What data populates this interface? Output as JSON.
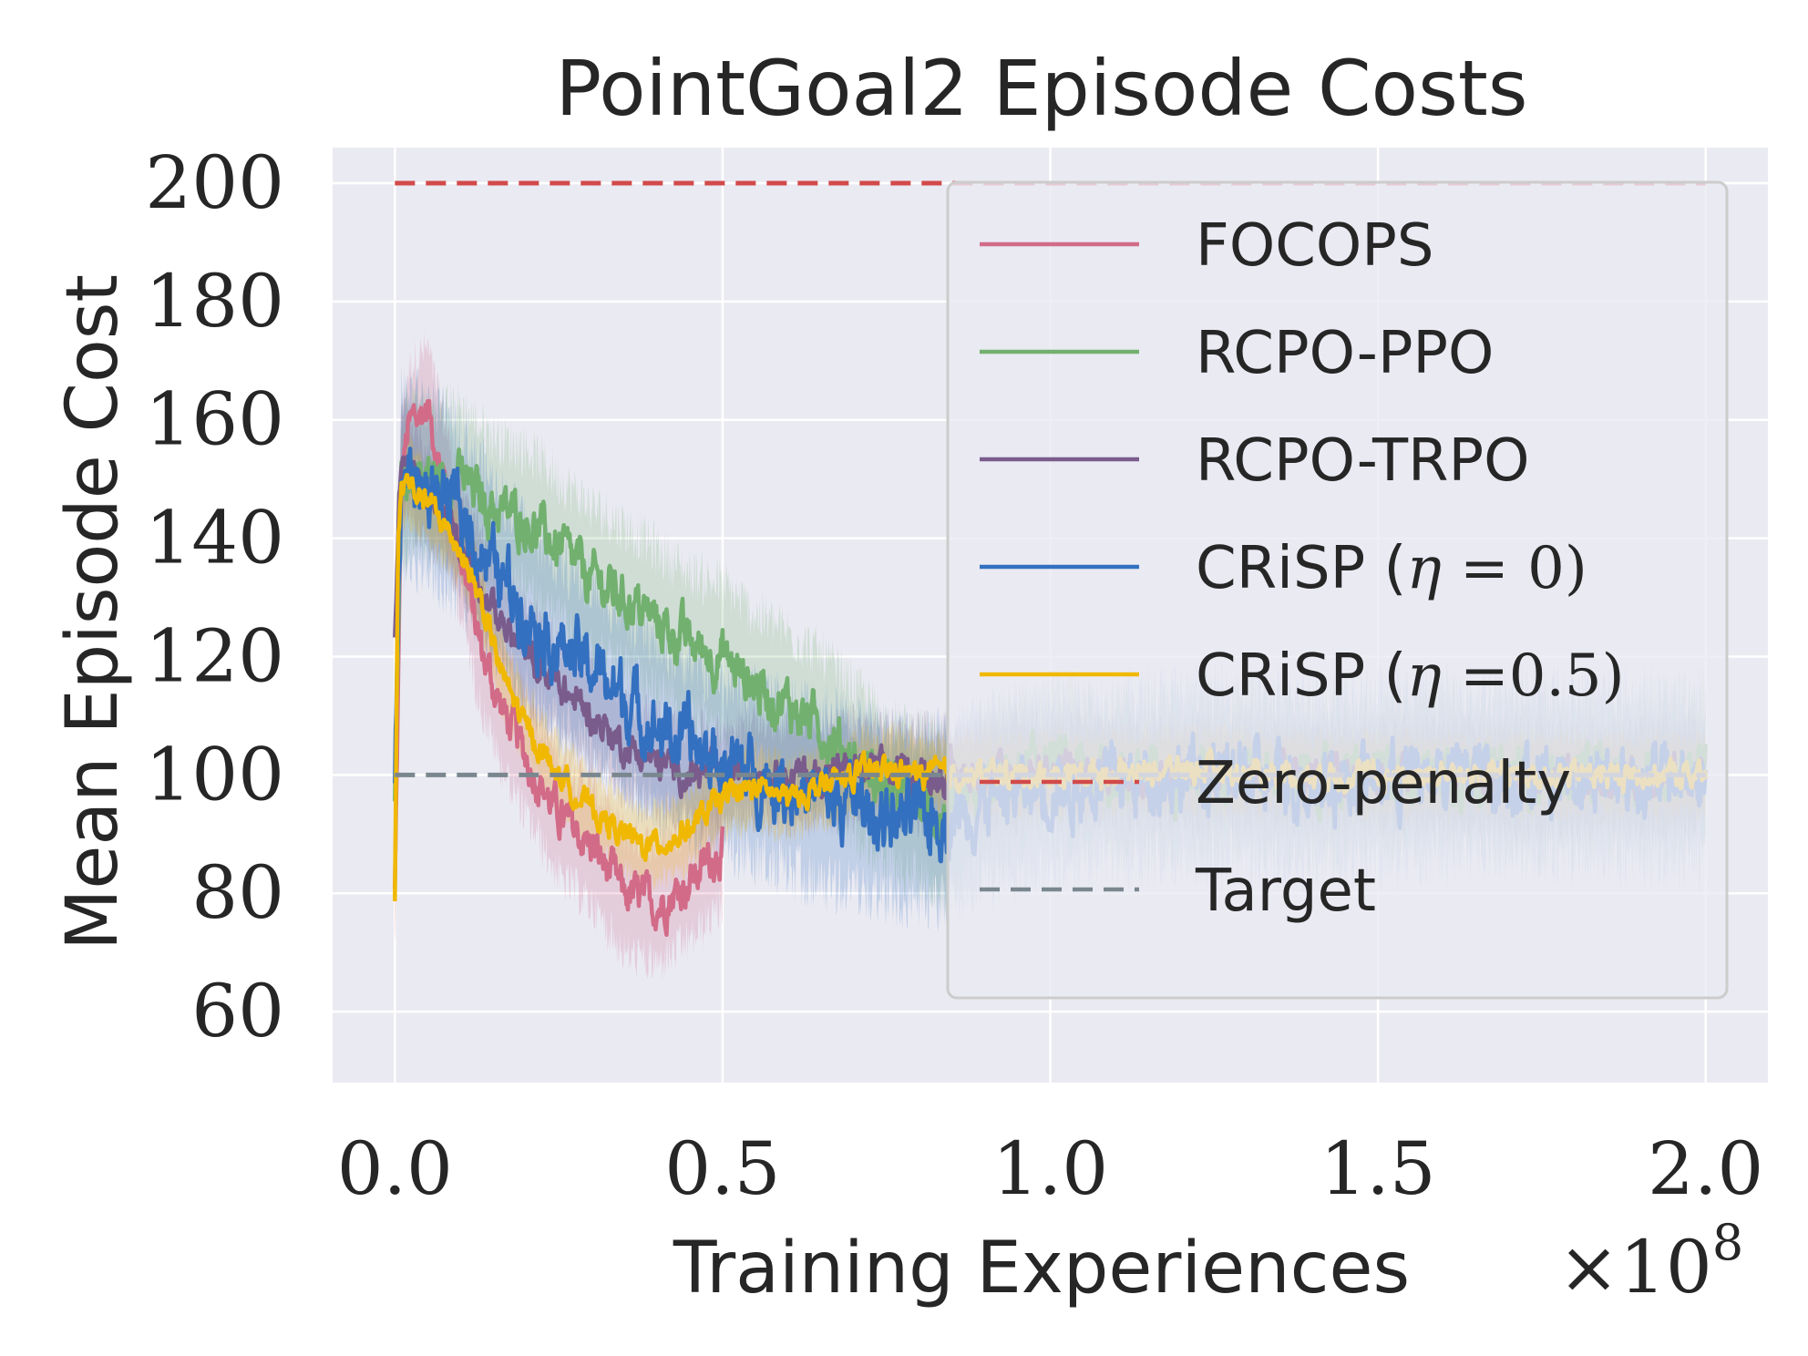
{
  "chart_data": {
    "type": "line",
    "title": "PointGoal2 Episode Costs",
    "xlabel": "Training Experiences",
    "ylabel": "Mean Episode Cost",
    "x_multiplier": "×10",
    "x_multiplier_exp": "8",
    "xlim": [
      -0.095,
      2.095
    ],
    "ylim": [
      48,
      206
    ],
    "x_ticks": [
      0.0,
      0.5,
      1.0,
      1.5,
      2.0
    ],
    "x_tick_labels": [
      "0.0",
      "0.5",
      "1.0",
      "1.5",
      "2.0"
    ],
    "y_ticks": [
      60,
      80,
      100,
      120,
      140,
      160,
      180,
      200
    ],
    "y_tick_labels": [
      "60",
      "80",
      "100",
      "120",
      "140",
      "160",
      "180",
      "200"
    ],
    "grid": true,
    "legend_position": "right",
    "series": [
      {
        "name": "FOCOPS",
        "color": "#d26b88",
        "style": "solid",
        "x": [
          0.0,
          0.01,
          0.02,
          0.03,
          0.05,
          0.07,
          0.1,
          0.13,
          0.16,
          0.2,
          0.25,
          0.3,
          0.35,
          0.4,
          0.45,
          0.5
        ],
        "values": [
          80,
          150,
          158,
          160,
          162,
          152,
          138,
          122,
          112,
          103,
          93,
          88,
          80,
          78,
          82,
          88
        ]
      },
      {
        "name": "RCPO-PPO",
        "color": "#72b06f",
        "style": "solid",
        "x": [
          0.0,
          0.01,
          0.03,
          0.06,
          0.1,
          0.15,
          0.2,
          0.25,
          0.3,
          0.35,
          0.4,
          0.45,
          0.5,
          0.55,
          0.6,
          0.65,
          0.7,
          0.75,
          0.8,
          0.85,
          0.9,
          1.0,
          1.1,
          1.2,
          1.3,
          1.4,
          1.5,
          1.6,
          1.7,
          1.8,
          1.9,
          2.0
        ],
        "values": [
          95,
          148,
          152,
          150,
          150,
          145,
          143,
          138,
          133,
          130,
          126,
          122,
          120,
          115,
          112,
          108,
          103,
          97,
          95,
          92,
          98,
          102,
          100,
          100,
          101,
          99,
          100,
          101,
          100,
          100,
          100,
          102
        ]
      },
      {
        "name": "RCPO-TRPO",
        "color": "#7a5c8c",
        "style": "solid",
        "x": [
          0.0,
          0.01,
          0.03,
          0.06,
          0.1,
          0.15,
          0.2,
          0.25,
          0.3,
          0.35,
          0.4,
          0.45,
          0.5,
          0.55,
          0.6,
          0.65,
          0.7,
          0.8,
          0.9,
          1.0,
          1.2,
          1.4,
          1.6,
          1.8,
          2.0
        ],
        "values": [
          125,
          155,
          150,
          145,
          140,
          128,
          120,
          115,
          110,
          105,
          102,
          100,
          100,
          101,
          100,
          100,
          101,
          100,
          100,
          101,
          100,
          100,
          100,
          99,
          100
        ]
      },
      {
        "name": "CRiSP (η = 0)",
        "color": "#3470c0",
        "style": "solid",
        "x": [
          0.0,
          0.01,
          0.03,
          0.06,
          0.1,
          0.15,
          0.2,
          0.25,
          0.3,
          0.35,
          0.4,
          0.45,
          0.5,
          0.55,
          0.6,
          0.65,
          0.7,
          0.75,
          0.8,
          0.85,
          0.9,
          1.0,
          1.2,
          1.4,
          1.6,
          1.8,
          2.0
        ],
        "values": [
          100,
          150,
          150,
          148,
          144,
          135,
          128,
          122,
          118,
          113,
          108,
          105,
          102,
          100,
          98,
          96,
          95,
          93,
          92,
          93,
          96,
          98,
          100,
          99,
          100,
          100,
          99
        ]
      },
      {
        "name": "CRiSP (η =0.5)",
        "color": "#f0b800",
        "style": "solid",
        "x": [
          0.0,
          0.005,
          0.01,
          0.02,
          0.03,
          0.05,
          0.07,
          0.1,
          0.13,
          0.16,
          0.2,
          0.25,
          0.3,
          0.35,
          0.38,
          0.42,
          0.46,
          0.5,
          0.55,
          0.6,
          0.65,
          0.7,
          0.75,
          0.8,
          0.9,
          1.0,
          1.2,
          1.4,
          1.6,
          1.8,
          2.0
        ],
        "values": [
          78,
          140,
          148,
          150,
          148,
          146,
          143,
          138,
          130,
          118,
          108,
          100,
          94,
          90,
          88,
          89,
          92,
          96,
          98,
          96,
          98,
          100,
          101,
          100,
          100,
          100,
          101,
          100,
          100,
          100,
          100
        ]
      },
      {
        "name": "Zero-penalty",
        "color": "#d24a4a",
        "style": "dashed",
        "x": [
          0.0,
          2.0
        ],
        "values": [
          200,
          200
        ]
      },
      {
        "name": "Target",
        "color": "#7a878f",
        "style": "dashed",
        "x": [
          0.0,
          2.0
        ],
        "values": [
          100,
          100
        ]
      }
    ],
    "legend": {
      "entries": [
        {
          "label": "FOCOPS"
        },
        {
          "label": "RCPO-PPO"
        },
        {
          "label": "RCPO-TRPO"
        },
        {
          "label_prefix": "CRiSP (",
          "label_eta": "η",
          "label_suffix": " = 0)"
        },
        {
          "label_prefix": "CRiSP (",
          "label_eta": "η",
          "label_suffix": " =0.5)"
        },
        {
          "label": "Zero-penalty"
        },
        {
          "label": "Target"
        }
      ]
    },
    "colors": {
      "background": "#eaeaf2",
      "grid": "#ffffff",
      "text": "#262626"
    }
  }
}
